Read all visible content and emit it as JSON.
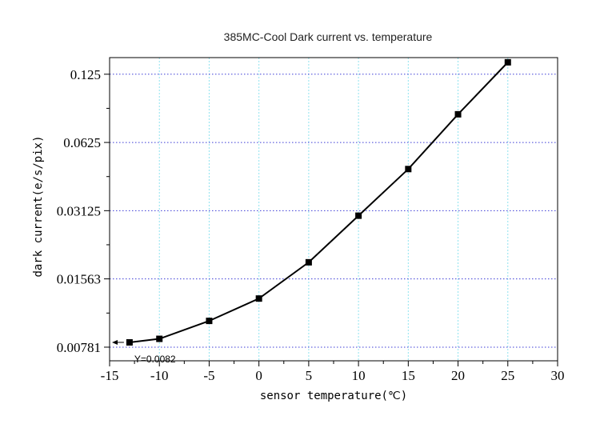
{
  "chart_data": {
    "type": "line",
    "title": "385MC-Cool Dark current vs. temperature",
    "xlabel": "sensor temperature(℃)",
    "ylabel": "dark current(e/s/pix)",
    "xlim": [
      -15,
      30
    ],
    "ylim": [
      0.0068,
      0.148
    ],
    "yscale": "log2",
    "x_ticks": [
      -15,
      -10,
      -5,
      0,
      5,
      10,
      15,
      20,
      25,
      30
    ],
    "x_tick_labels": [
      "-15",
      "-10",
      "-5",
      "0",
      "5",
      "10",
      "15",
      "20",
      "25",
      "30"
    ],
    "y_ticks": [
      0.00781,
      0.01563,
      0.03125,
      0.0625,
      0.125
    ],
    "y_tick_labels": [
      "0.00781",
      "0.01563",
      "0.03125",
      "0.0625",
      "0.125"
    ],
    "grid": true,
    "series": [
      {
        "x": [
          -13,
          -10,
          -5,
          0,
          5,
          10,
          15,
          20,
          25
        ],
        "y": [
          0.0082,
          0.0085,
          0.0102,
          0.0128,
          0.0185,
          0.0297,
          0.0477,
          0.0832,
          0.1411
        ],
        "color": "#000000",
        "marker": "square"
      }
    ],
    "annotations": [
      {
        "text": "Y=0.0082",
        "x": -13,
        "y": 0.0082
      }
    ]
  }
}
